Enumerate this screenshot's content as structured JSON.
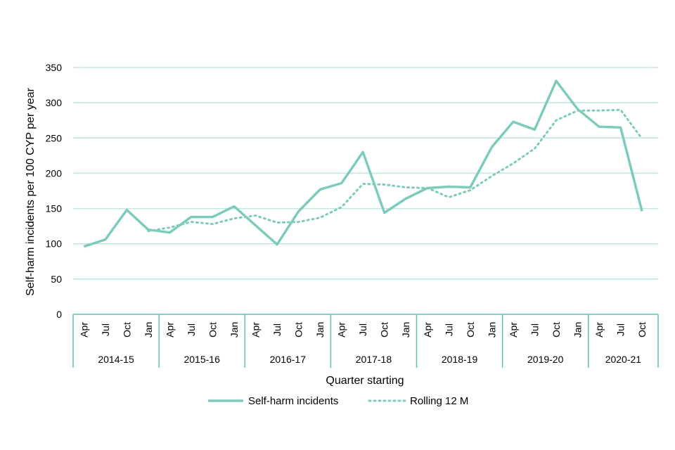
{
  "chart_data": {
    "type": "line",
    "title": "",
    "xlabel": "Quarter starting",
    "ylabel": "Self-harm incidents per 100 CYP per year",
    "ylim": [
      0,
      350
    ],
    "yticks": [
      0,
      50,
      100,
      150,
      200,
      250,
      300,
      350
    ],
    "grid": true,
    "legend_position": "bottom",
    "colors": {
      "line": "#7ECBBD",
      "axis": "#5FBFB0",
      "grid": "#BFE6DF"
    },
    "categories": [
      "Apr",
      "Jul",
      "Oct",
      "Jan",
      "Apr",
      "Jul",
      "Oct",
      "Jan",
      "Apr",
      "Jul",
      "Oct",
      "Jan",
      "Apr",
      "Jul",
      "Oct",
      "Jan",
      "Apr",
      "Jul",
      "Oct",
      "Jan",
      "Apr",
      "Jul",
      "Oct",
      "Jan",
      "Apr",
      "Jul",
      "Oct"
    ],
    "groups": [
      {
        "label": "2014-15",
        "count": 4
      },
      {
        "label": "2015-16",
        "count": 4
      },
      {
        "label": "2016-17",
        "count": 4
      },
      {
        "label": "2017-18",
        "count": 4
      },
      {
        "label": "2018-19",
        "count": 4
      },
      {
        "label": "2019-20",
        "count": 4
      },
      {
        "label": "2020-21",
        "count": 3
      }
    ],
    "series": [
      {
        "name": "Self-harm incidents",
        "style": "solid",
        "values": [
          96,
          106,
          148,
          120,
          116,
          138,
          138,
          153,
          126,
          99,
          146,
          177,
          186,
          230,
          144,
          164,
          179,
          181,
          180,
          237,
          273,
          262,
          331,
          291,
          266,
          265,
          146
        ]
      },
      {
        "name": "Rolling 12 M",
        "style": "dotted",
        "values": [
          null,
          null,
          null,
          118,
          123,
          131,
          128,
          136,
          140,
          130,
          131,
          137,
          152,
          185,
          184,
          180,
          179,
          166,
          176,
          196,
          214,
          235,
          275,
          289,
          289,
          290,
          249
        ]
      }
    ]
  }
}
